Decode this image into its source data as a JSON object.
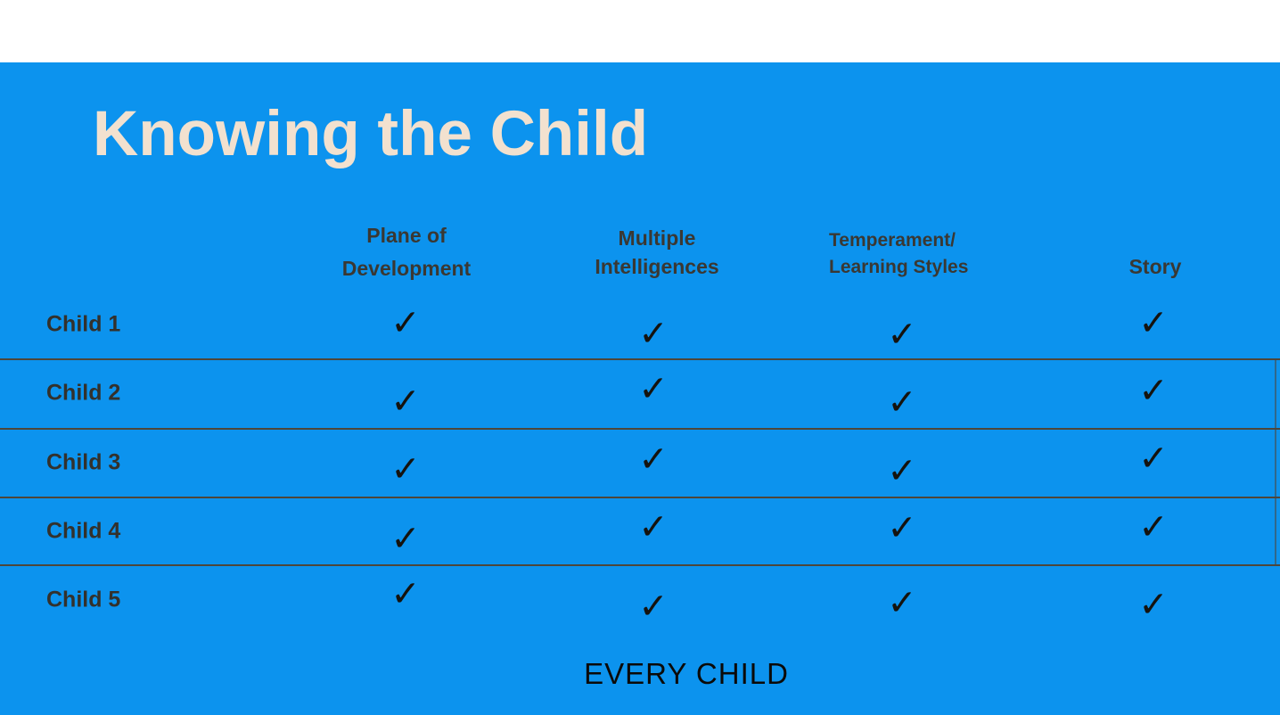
{
  "slide": {
    "title": "Knowing the Child",
    "footer": "EVERY CHILD"
  },
  "table": {
    "columns": [
      {
        "label": "Plane of Development",
        "lines": [
          "Plane of",
          "Development"
        ]
      },
      {
        "label": "Multiple Intelligences",
        "lines": [
          "Multiple",
          "Intelligences"
        ]
      },
      {
        "label": "Temperament/ Learning Styles",
        "lines": [
          "Temperament/",
          "Learning Styles"
        ]
      },
      {
        "label": "Story",
        "lines": [
          "Story"
        ]
      }
    ],
    "rows": [
      {
        "label": "Child 1",
        "checks": [
          true,
          true,
          true,
          true
        ]
      },
      {
        "label": "Child 2",
        "checks": [
          true,
          true,
          true,
          true
        ]
      },
      {
        "label": "Child 3",
        "checks": [
          true,
          true,
          true,
          true
        ]
      },
      {
        "label": "Child 4",
        "checks": [
          true,
          true,
          true,
          true
        ]
      },
      {
        "label": "Child 5",
        "checks": [
          true,
          true,
          true,
          true
        ]
      }
    ],
    "check_glyph": "✓"
  },
  "colors": {
    "panel_blue": "#0c93ee",
    "title_cream": "#f2e1cf",
    "header_text": "#3a3833",
    "row_label_text": "#33312c",
    "divider": "#4e463a",
    "checkmark": "#15130f",
    "footer_text": "#0b0a08"
  }
}
